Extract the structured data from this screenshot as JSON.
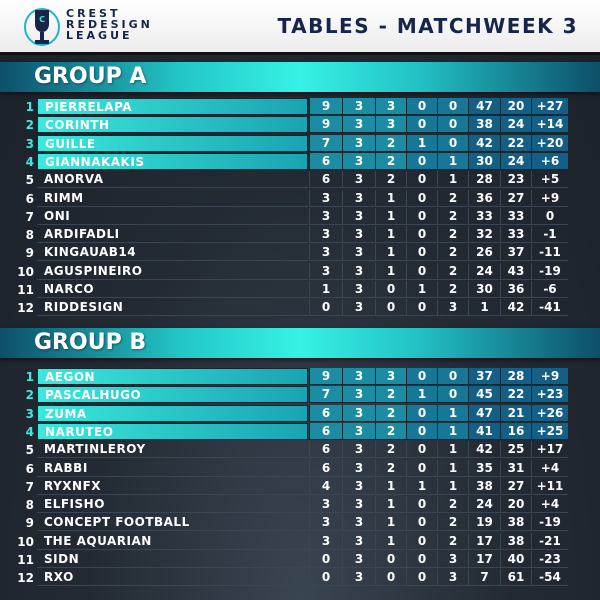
{
  "header": {
    "logo_text": [
      "CREST",
      "REDESIGN",
      "LEAGUE"
    ],
    "title": "TABLES - MATCHWEEK 3"
  },
  "colors": {
    "navy": "#16264a",
    "highlight": "#36f2e4",
    "background": "#232a33"
  },
  "groups": [
    {
      "title": "GROUP A",
      "rows": [
        {
          "rank": "1",
          "name": "PIERRELAPA",
          "stats": [
            "9",
            "3",
            "3",
            "0",
            "0",
            "47",
            "20",
            "+27"
          ]
        },
        {
          "rank": "2",
          "name": "CORINTH",
          "stats": [
            "9",
            "3",
            "3",
            "0",
            "0",
            "38",
            "24",
            "+14"
          ]
        },
        {
          "rank": "3",
          "name": "GUILLE",
          "stats": [
            "7",
            "3",
            "2",
            "1",
            "0",
            "42",
            "22",
            "+20"
          ]
        },
        {
          "rank": "4",
          "name": "GIANNAKAKIS",
          "stats": [
            "6",
            "3",
            "2",
            "0",
            "1",
            "30",
            "24",
            "+6"
          ]
        },
        {
          "rank": "5",
          "name": "ANORVA",
          "stats": [
            "6",
            "3",
            "2",
            "0",
            "1",
            "28",
            "23",
            "+5"
          ]
        },
        {
          "rank": "6",
          "name": "RIMM",
          "stats": [
            "3",
            "3",
            "1",
            "0",
            "2",
            "36",
            "27",
            "+9"
          ]
        },
        {
          "rank": "7",
          "name": "ONI",
          "stats": [
            "3",
            "3",
            "1",
            "0",
            "2",
            "33",
            "33",
            "0"
          ]
        },
        {
          "rank": "8",
          "name": "ARDIFADLI",
          "stats": [
            "3",
            "3",
            "1",
            "0",
            "2",
            "32",
            "33",
            "-1"
          ]
        },
        {
          "rank": "9",
          "name": "KINGAUAB14",
          "stats": [
            "3",
            "3",
            "1",
            "0",
            "2",
            "26",
            "37",
            "-11"
          ]
        },
        {
          "rank": "10",
          "name": "AGUSPINEIRO",
          "stats": [
            "3",
            "3",
            "1",
            "0",
            "2",
            "24",
            "43",
            "-19"
          ]
        },
        {
          "rank": "11",
          "name": "NARCO",
          "stats": [
            "1",
            "3",
            "0",
            "1",
            "2",
            "30",
            "36",
            "-6"
          ]
        },
        {
          "rank": "12",
          "name": "RIDDESIGN",
          "stats": [
            "0",
            "3",
            "0",
            "0",
            "3",
            "1",
            "42",
            "-41"
          ]
        }
      ]
    },
    {
      "title": "GROUP B",
      "rows": [
        {
          "rank": "1",
          "name": "AEGON",
          "stats": [
            "9",
            "3",
            "3",
            "0",
            "0",
            "37",
            "28",
            "+9"
          ]
        },
        {
          "rank": "2",
          "name": "PASCALHUGO",
          "stats": [
            "7",
            "3",
            "2",
            "1",
            "0",
            "45",
            "22",
            "+23"
          ]
        },
        {
          "rank": "3",
          "name": "ZUMA",
          "stats": [
            "6",
            "3",
            "2",
            "0",
            "1",
            "47",
            "21",
            "+26"
          ]
        },
        {
          "rank": "4",
          "name": "NARUTEO",
          "stats": [
            "6",
            "3",
            "2",
            "0",
            "1",
            "41",
            "16",
            "+25"
          ]
        },
        {
          "rank": "5",
          "name": "MARTINLEROY",
          "stats": [
            "6",
            "3",
            "2",
            "0",
            "1",
            "42",
            "25",
            "+17"
          ]
        },
        {
          "rank": "6",
          "name": "RABBI",
          "stats": [
            "6",
            "3",
            "2",
            "0",
            "1",
            "35",
            "31",
            "+4"
          ]
        },
        {
          "rank": "7",
          "name": "RYXNFX",
          "stats": [
            "4",
            "3",
            "1",
            "1",
            "1",
            "38",
            "27",
            "+11"
          ]
        },
        {
          "rank": "8",
          "name": "ELFISHO",
          "stats": [
            "3",
            "3",
            "1",
            "0",
            "2",
            "24",
            "20",
            "+4"
          ]
        },
        {
          "rank": "9",
          "name": "CONCEPT FOOTBALL",
          "stats": [
            "3",
            "3",
            "1",
            "0",
            "2",
            "19",
            "38",
            "-19"
          ]
        },
        {
          "rank": "10",
          "name": "THE AQUARIAN",
          "stats": [
            "3",
            "3",
            "1",
            "0",
            "2",
            "17",
            "38",
            "-21"
          ]
        },
        {
          "rank": "11",
          "name": "SIDN",
          "stats": [
            "0",
            "3",
            "0",
            "0",
            "3",
            "17",
            "40",
            "-23"
          ]
        },
        {
          "rank": "12",
          "name": "RXO",
          "stats": [
            "0",
            "3",
            "0",
            "0",
            "3",
            "7",
            "61",
            "-54"
          ]
        }
      ]
    }
  ]
}
